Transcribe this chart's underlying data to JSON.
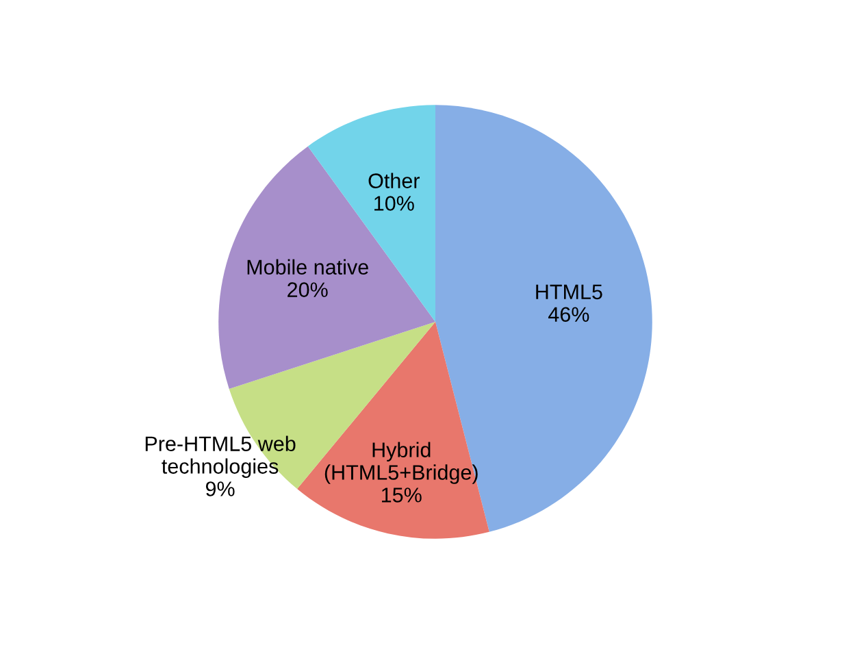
{
  "chart_data": {
    "type": "pie",
    "categories": [
      "HTML5",
      "Hybrid\n(HTML5+Bridge)",
      "Pre-HTML5 web\ntechnologies",
      "Mobile native",
      "Other"
    ],
    "values": [
      46,
      15,
      9,
      20,
      10
    ],
    "value_labels": [
      "46%",
      "15%",
      "9%",
      "20%",
      "10%"
    ],
    "colors": [
      "#86aee6",
      "#e8776c",
      "#c6df86",
      "#a78fcb",
      "#72d4ea"
    ],
    "legend": false
  }
}
